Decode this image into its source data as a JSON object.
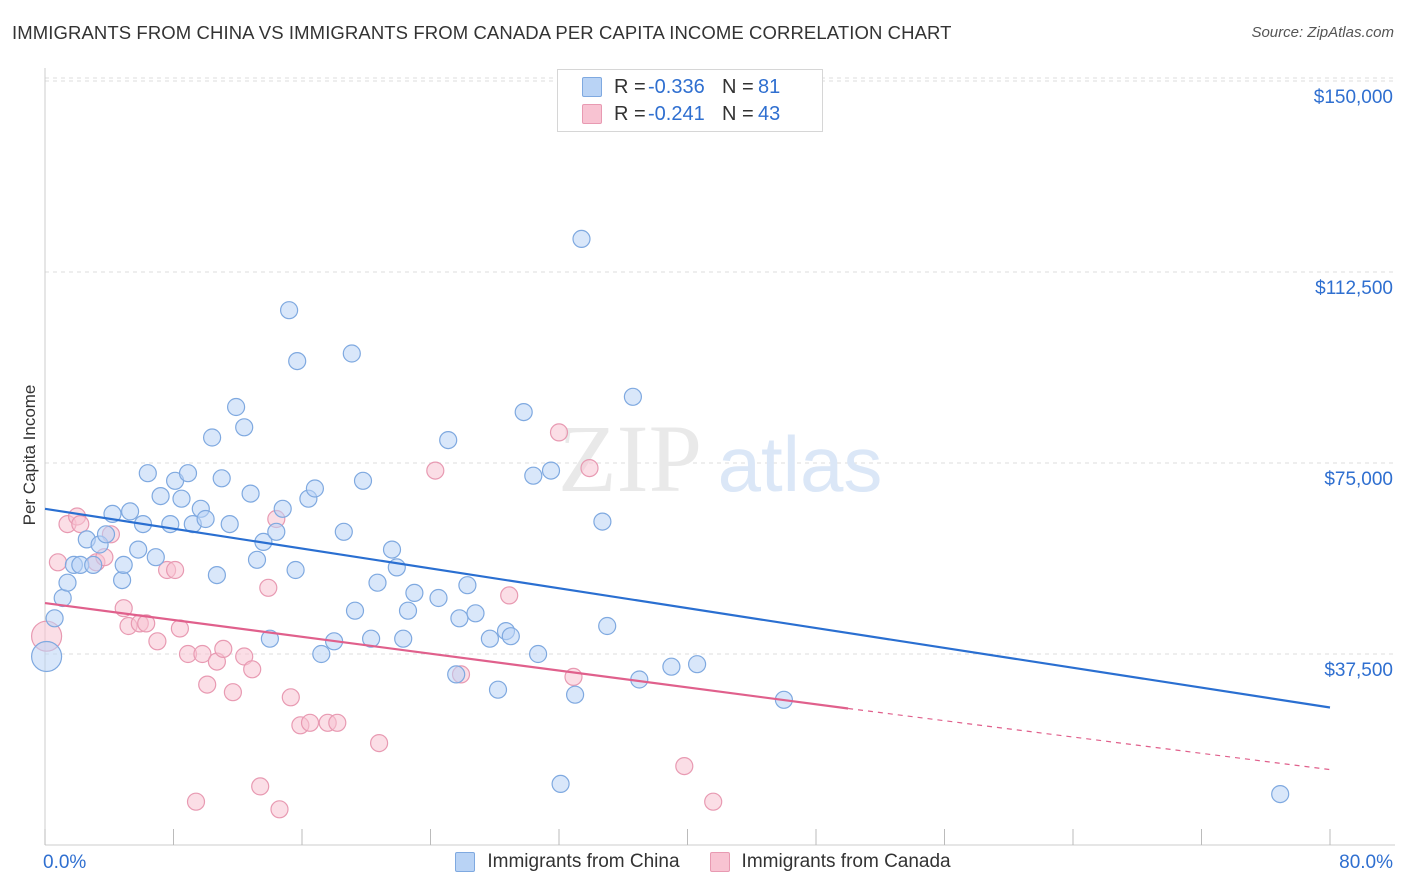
{
  "title": "IMMIGRANTS FROM CHINA VS IMMIGRANTS FROM CANADA PER CAPITA INCOME CORRELATION CHART",
  "source": "Source: ZipAtlas.com",
  "watermark": {
    "zip": "ZIP",
    "atlas": "atlas"
  },
  "legend_top": {
    "rows": [
      {
        "r_label": "R =",
        "r_value": "-0.336",
        "n_label": "N =",
        "n_value": "81"
      },
      {
        "r_label": "R =",
        "r_value": "-0.241",
        "n_label": "N =",
        "n_value": "43"
      }
    ]
  },
  "colors": {
    "china_fill": "#b9d3f5",
    "china_stroke": "#7fa9e0",
    "china_line": "#2a6fd1",
    "canada_fill": "#f8c3d2",
    "canada_stroke": "#e89ab2",
    "canada_line": "#e0608c",
    "tick_text": "#2f6fd0",
    "grid": "#dddddd"
  },
  "chart_data": {
    "type": "scatter",
    "title": "IMMIGRANTS FROM CHINA VS IMMIGRANTS FROM CANADA PER CAPITA INCOME CORRELATION CHART",
    "xlabel": "",
    "ylabel": "Per Capita Income",
    "xlim": [
      0,
      80
    ],
    "ylim": [
      0,
      157000
    ],
    "x_tick_labels": [
      "0.0%",
      "80.0%"
    ],
    "y_ticks": [
      37500,
      75000,
      112500,
      150000
    ],
    "y_tick_labels": [
      "$37,500",
      "$75,000",
      "$112,500",
      "$150,000"
    ],
    "grid": true,
    "legend_placement": "bottom",
    "series": [
      {
        "name": "Immigrants from China",
        "r": -0.336,
        "n": 81,
        "trend": {
          "x0": 0,
          "y0": 66000,
          "x1": 80,
          "y1": 27000
        },
        "points": [
          [
            0.1,
            37000
          ],
          [
            0.6,
            44500
          ],
          [
            1.1,
            48500
          ],
          [
            1.4,
            51500
          ],
          [
            1.8,
            55000
          ],
          [
            2.2,
            55000
          ],
          [
            2.6,
            60000
          ],
          [
            3.0,
            55000
          ],
          [
            3.4,
            59000
          ],
          [
            3.8,
            61000
          ],
          [
            4.2,
            65000
          ],
          [
            4.8,
            52000
          ],
          [
            4.9,
            55000
          ],
          [
            5.3,
            65500
          ],
          [
            5.8,
            58000
          ],
          [
            6.1,
            63000
          ],
          [
            6.4,
            73000
          ],
          [
            6.9,
            56500
          ],
          [
            7.2,
            68500
          ],
          [
            7.8,
            63000
          ],
          [
            8.1,
            71500
          ],
          [
            8.5,
            68000
          ],
          [
            8.9,
            73000
          ],
          [
            9.2,
            63000
          ],
          [
            9.7,
            66000
          ],
          [
            10.0,
            64000
          ],
          [
            10.4,
            80000
          ],
          [
            10.7,
            53000
          ],
          [
            11.0,
            72000
          ],
          [
            11.5,
            63000
          ],
          [
            11.9,
            86000
          ],
          [
            12.4,
            82000
          ],
          [
            12.8,
            69000
          ],
          [
            13.2,
            56000
          ],
          [
            13.6,
            59500
          ],
          [
            14.0,
            40500
          ],
          [
            14.4,
            61500
          ],
          [
            14.8,
            66000
          ],
          [
            15.2,
            105000
          ],
          [
            15.6,
            54000
          ],
          [
            15.7,
            95000
          ],
          [
            16.4,
            68000
          ],
          [
            16.8,
            70000
          ],
          [
            17.2,
            37500
          ],
          [
            18.0,
            40000
          ],
          [
            18.6,
            61500
          ],
          [
            19.1,
            96500
          ],
          [
            19.3,
            46000
          ],
          [
            19.8,
            71500
          ],
          [
            20.3,
            40500
          ],
          [
            20.7,
            51500
          ],
          [
            21.6,
            58000
          ],
          [
            21.9,
            54500
          ],
          [
            22.3,
            40500
          ],
          [
            22.6,
            46000
          ],
          [
            23.0,
            49500
          ],
          [
            24.5,
            48500
          ],
          [
            25.1,
            79500
          ],
          [
            25.6,
            33500
          ],
          [
            25.8,
            44500
          ],
          [
            26.3,
            51000
          ],
          [
            26.8,
            45500
          ],
          [
            27.7,
            40500
          ],
          [
            28.2,
            30500
          ],
          [
            28.7,
            42000
          ],
          [
            29.0,
            41000
          ],
          [
            29.8,
            85000
          ],
          [
            30.4,
            72500
          ],
          [
            30.7,
            37500
          ],
          [
            31.5,
            73500
          ],
          [
            32.1,
            12000
          ],
          [
            33.0,
            29500
          ],
          [
            33.4,
            119000
          ],
          [
            34.7,
            63500
          ],
          [
            35.0,
            43000
          ],
          [
            36.6,
            88000
          ],
          [
            37.0,
            32500
          ],
          [
            39.0,
            35000
          ],
          [
            40.6,
            35500
          ],
          [
            46.0,
            28500
          ],
          [
            76.9,
            10000
          ]
        ]
      },
      {
        "name": "Immigrants from Canada",
        "r": -0.241,
        "n": 43,
        "trend": {
          "x0": 0,
          "y0": 47500,
          "x1": 50,
          "y1": 26800,
          "dash_x1": 80,
          "dash_y1": 14800
        },
        "points": [
          [
            0.1,
            41000
          ],
          [
            0.8,
            55500
          ],
          [
            1.4,
            63000
          ],
          [
            2.0,
            64500
          ],
          [
            2.2,
            63000
          ],
          [
            3.2,
            55500
          ],
          [
            3.7,
            56500
          ],
          [
            4.1,
            61000
          ],
          [
            4.9,
            46500
          ],
          [
            5.2,
            43000
          ],
          [
            5.9,
            43500
          ],
          [
            6.3,
            43500
          ],
          [
            7.0,
            40000
          ],
          [
            7.6,
            54000
          ],
          [
            8.1,
            54000
          ],
          [
            8.4,
            42500
          ],
          [
            8.9,
            37500
          ],
          [
            9.4,
            8500
          ],
          [
            9.8,
            37500
          ],
          [
            10.1,
            31500
          ],
          [
            10.7,
            36000
          ],
          [
            11.1,
            38500
          ],
          [
            11.7,
            30000
          ],
          [
            12.4,
            37000
          ],
          [
            12.9,
            34500
          ],
          [
            13.4,
            11500
          ],
          [
            13.9,
            50500
          ],
          [
            14.4,
            64000
          ],
          [
            14.6,
            7000
          ],
          [
            15.3,
            29000
          ],
          [
            15.9,
            23500
          ],
          [
            16.5,
            24000
          ],
          [
            17.6,
            24000
          ],
          [
            18.2,
            24000
          ],
          [
            20.8,
            20000
          ],
          [
            24.3,
            73500
          ],
          [
            25.9,
            33500
          ],
          [
            28.9,
            49000
          ],
          [
            32.0,
            81000
          ],
          [
            32.9,
            33000
          ],
          [
            33.9,
            74000
          ],
          [
            39.8,
            15500
          ],
          [
            41.6,
            8500
          ]
        ]
      }
    ]
  },
  "x_axis": {
    "left_label": "0.0%",
    "right_label": "80.0%"
  },
  "legend_bottom": [
    {
      "label": "Immigrants from China"
    },
    {
      "label": "Immigrants from Canada"
    }
  ]
}
